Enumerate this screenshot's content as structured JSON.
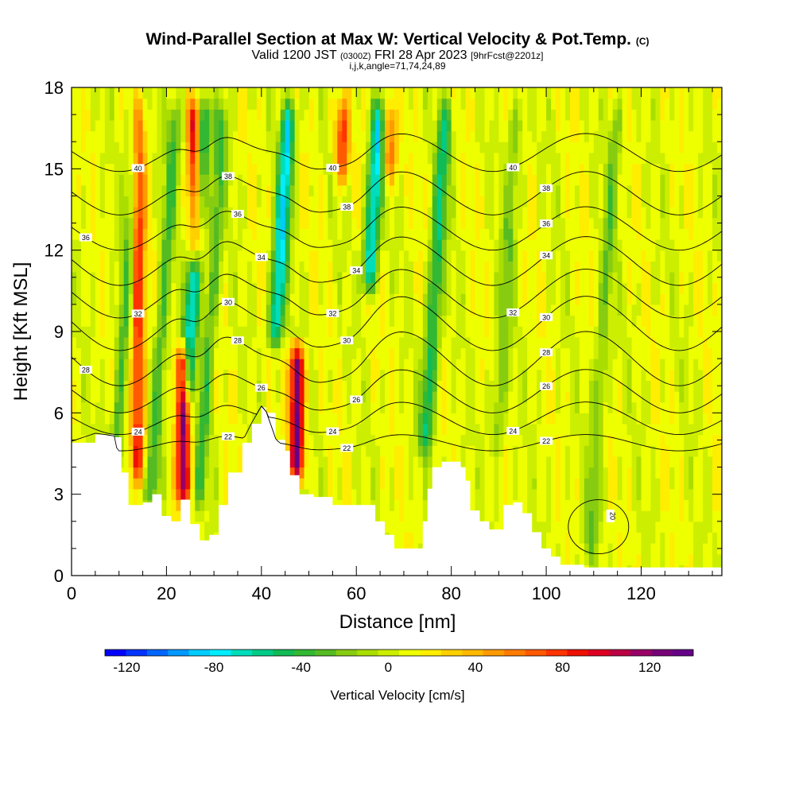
{
  "chart_data": {
    "type": "heatmap",
    "title": "Wind-Parallel Section at Max W: Vertical Velocity & Pot.Temp.",
    "title_mark": "(C)",
    "subtitle_prefix": "Valid 1200 JST",
    "subtitle_utc": "(0300Z)",
    "subtitle_date": "FRI 28 Apr 2023",
    "subtitle_fcst": "[9hrFcst@2201z]",
    "subtitle2": "i,j,k,angle=71,74,24,89",
    "xlabel": "Distance [nm]",
    "ylabel": "Height [Kft MSL]",
    "xlim": [
      0,
      137
    ],
    "ylim": [
      0,
      18
    ],
    "x_ticks": [
      "0",
      "20",
      "40",
      "60",
      "80",
      "100",
      "120"
    ],
    "y_ticks": [
      "0",
      "3",
      "6",
      "9",
      "12",
      "15",
      "18"
    ],
    "colorbar": {
      "label": "Vertical Velocity [cm/s]",
      "range": [
        -130,
        140
      ],
      "ticks": [
        "-120",
        "-80",
        "-40",
        "0",
        "40",
        "80",
        "120"
      ],
      "colors": [
        "#0000ff",
        "#0033ff",
        "#0066ff",
        "#0099ff",
        "#00ccff",
        "#00eeff",
        "#00ddbb",
        "#00cc88",
        "#11bb55",
        "#33b833",
        "#55bb22",
        "#88cc11",
        "#aadd00",
        "#ccee00",
        "#eeff00",
        "#ffee00",
        "#ffd000",
        "#ffb800",
        "#ff9a00",
        "#ff7c00",
        "#ff5a00",
        "#ff3300",
        "#ee1100",
        "#dd0022",
        "#bb0044",
        "#990066",
        "#770077",
        "#660088"
      ]
    },
    "updrafts": [
      {
        "x": 14,
        "amp": 80,
        "zmin": 3,
        "zmax": 18
      },
      {
        "x": 23.5,
        "amp": 110,
        "zmin": 2,
        "zmax": 9
      },
      {
        "x": 26,
        "amp": 100,
        "zmin": 11,
        "zmax": 18
      },
      {
        "x": 47.5,
        "amp": 130,
        "zmin": 3,
        "zmax": 9
      },
      {
        "x": 57,
        "amp": 70,
        "zmin": 14,
        "zmax": 18
      },
      {
        "x": 67,
        "amp": 60,
        "zmin": 14,
        "zmax": 18
      }
    ],
    "downdrafts": [
      {
        "x": 11,
        "amp": -40,
        "zmin": 3,
        "zmax": 18
      },
      {
        "x": 19,
        "amp": -40,
        "zmin": 2,
        "zmax": 18
      },
      {
        "x": 25,
        "amp": -80,
        "zmin": 6,
        "zmax": 18
      },
      {
        "x": 29,
        "amp": -40,
        "zmin": 2,
        "zmax": 18
      },
      {
        "x": 43,
        "amp": -90,
        "zmin": 8,
        "zmax": 18
      },
      {
        "x": 62,
        "amp": -90,
        "zmin": 10,
        "zmax": 18
      },
      {
        "x": 76,
        "amp": -60,
        "zmin": 4,
        "zmax": 18
      },
      {
        "x": 91,
        "amp": -30,
        "zmin": 4,
        "zmax": 18
      },
      {
        "x": 112,
        "amp": -30,
        "zmin": 0,
        "zmax": 18
      }
    ],
    "terrain": [
      [
        0,
        4.9
      ],
      [
        5,
        5.2
      ],
      [
        9,
        5.1
      ],
      [
        10.5,
        3.8
      ],
      [
        12,
        2.6
      ],
      [
        15,
        2.7
      ],
      [
        17,
        3.0
      ],
      [
        19,
        2.2
      ],
      [
        21,
        2.0
      ],
      [
        23,
        2.8
      ],
      [
        25,
        1.9
      ],
      [
        27,
        1.3
      ],
      [
        29,
        1.5
      ],
      [
        31,
        2.6
      ],
      [
        33,
        3.8
      ],
      [
        36,
        4.9
      ],
      [
        38,
        5.6
      ],
      [
        40,
        6.2
      ],
      [
        41,
        6.0
      ],
      [
        43,
        5.0
      ],
      [
        45,
        4.6
      ],
      [
        46,
        3.7
      ],
      [
        48,
        3.0
      ],
      [
        51,
        2.9
      ],
      [
        55,
        2.6
      ],
      [
        60,
        2.6
      ],
      [
        64,
        2.0
      ],
      [
        66,
        1.5
      ],
      [
        68,
        1.0
      ],
      [
        72,
        1.0
      ],
      [
        74,
        2.0
      ],
      [
        75,
        3.2
      ],
      [
        76,
        4.0
      ],
      [
        78,
        4.2
      ],
      [
        82,
        4.0
      ],
      [
        83,
        3.5
      ],
      [
        84,
        2.4
      ],
      [
        86,
        2.0
      ],
      [
        88,
        1.7
      ],
      [
        91,
        2.6
      ],
      [
        93,
        2.7
      ],
      [
        95,
        2.3
      ],
      [
        97,
        1.6
      ],
      [
        99,
        1.0
      ],
      [
        101,
        0.7
      ],
      [
        103,
        0.4
      ],
      [
        108,
        0.3
      ],
      [
        120,
        0.3
      ],
      [
        130,
        0.3
      ],
      [
        137,
        0.3
      ]
    ],
    "theta_contours": [
      {
        "label": "20",
        "base": 0.9,
        "amp": 0.0
      },
      {
        "label": "22",
        "base": 4.9,
        "amp": 0.3
      },
      {
        "label": "24",
        "base": 5.8,
        "amp": 0.6
      },
      {
        "label": "26",
        "base": 6.8,
        "amp": 0.8
      },
      {
        "label": "28",
        "base": 8.0,
        "amp": 1.0
      },
      {
        "label": "30",
        "base": 9.3,
        "amp": 1.0
      },
      {
        "label": "32",
        "base": 10.4,
        "amp": 0.9
      },
      {
        "label": "34",
        "base": 11.6,
        "amp": 0.9
      },
      {
        "label": "36",
        "base": 12.8,
        "amp": 0.8
      },
      {
        "label": "38",
        "base": 14.1,
        "amp": 0.8
      },
      {
        "label": "40",
        "base": 15.6,
        "amp": 0.7
      }
    ]
  }
}
